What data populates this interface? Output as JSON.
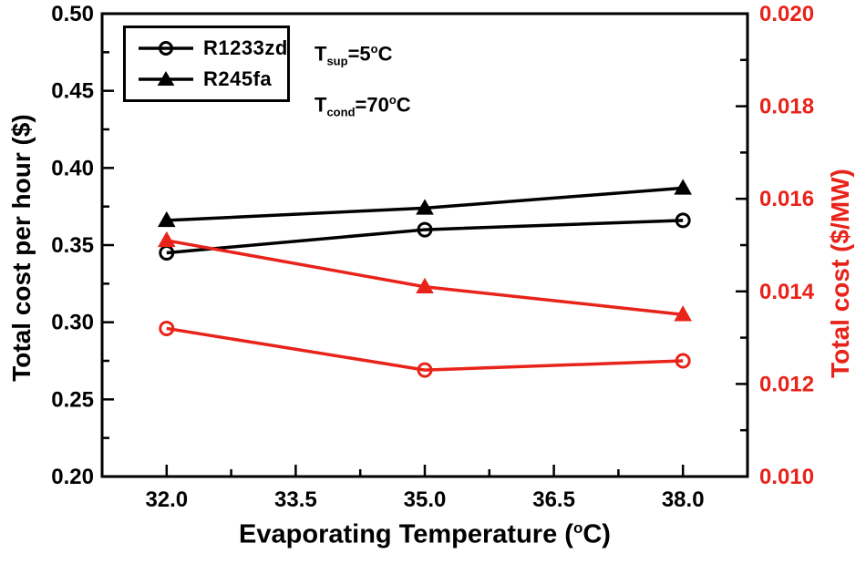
{
  "colors": {
    "black": "#000000",
    "red": "#e8231a",
    "background": "#ffffff"
  },
  "chart_data": {
    "type": "line",
    "title": "",
    "xlabel_parts": {
      "main": "Evaporating Temperature (",
      "sup": "o",
      "end": "C)"
    },
    "ylabel_left": "Total cost per hour ($)",
    "ylabel_right": "Total cost ($/MW)",
    "x_range": [
      31.25,
      38.75
    ],
    "y_left_range": [
      0.2,
      0.5
    ],
    "y_right_range": [
      0.01,
      0.02
    ],
    "grid": false,
    "x_ticks": {
      "values": [
        32.0,
        33.5,
        35.0,
        36.5,
        38.0
      ],
      "labels": [
        "32.0",
        "33.5",
        "35.0",
        "36.5",
        "38.0"
      ],
      "minor": [
        32.75,
        34.25,
        35.75,
        37.25
      ]
    },
    "y_left_ticks": {
      "values": [
        0.2,
        0.25,
        0.3,
        0.35,
        0.4,
        0.45,
        0.5
      ],
      "labels": [
        "0.20",
        "0.25",
        "0.30",
        "0.35",
        "0.40",
        "0.45",
        "0.50"
      ],
      "minor": [
        0.225,
        0.275,
        0.325,
        0.375,
        0.425,
        0.475
      ]
    },
    "y_right_ticks": {
      "values": [
        0.01,
        0.012,
        0.014,
        0.016,
        0.018,
        0.02
      ],
      "labels": [
        "0.010",
        "0.012",
        "0.014",
        "0.016",
        "0.018",
        "0.020"
      ],
      "minor": [
        0.011,
        0.013,
        0.015,
        0.017,
        0.019
      ]
    },
    "x": [
      32,
      35,
      38
    ],
    "series": [
      {
        "name": "R1233zd",
        "axis": "left",
        "color": "#000000",
        "marker": "circle-open",
        "values": [
          0.345,
          0.36,
          0.366
        ]
      },
      {
        "name": "R245fa",
        "axis": "left",
        "color": "#000000",
        "marker": "triangle-filled",
        "values": [
          0.366,
          0.374,
          0.387
        ]
      },
      {
        "name": "R1233zd",
        "axis": "right",
        "color": "#e8231a",
        "marker": "circle-open",
        "values": [
          0.0132,
          0.0123,
          0.0125
        ]
      },
      {
        "name": "R245fa",
        "axis": "right",
        "color": "#e8231a",
        "marker": "triangle-filled",
        "values": [
          0.0151,
          0.0141,
          0.0135
        ]
      }
    ],
    "legend": {
      "position": "top-left",
      "items": [
        {
          "label": "R1233zd",
          "marker": "circle-open"
        },
        {
          "label": "R245fa",
          "marker": "triangle-filled"
        }
      ]
    },
    "annotations": [
      {
        "base": "T",
        "sub": "sup",
        "eq": "=5",
        "sup": "o",
        "end": "C"
      },
      {
        "base": "T",
        "sub": "cond",
        "eq": "=70",
        "sup": "o",
        "end": "C"
      }
    ]
  }
}
